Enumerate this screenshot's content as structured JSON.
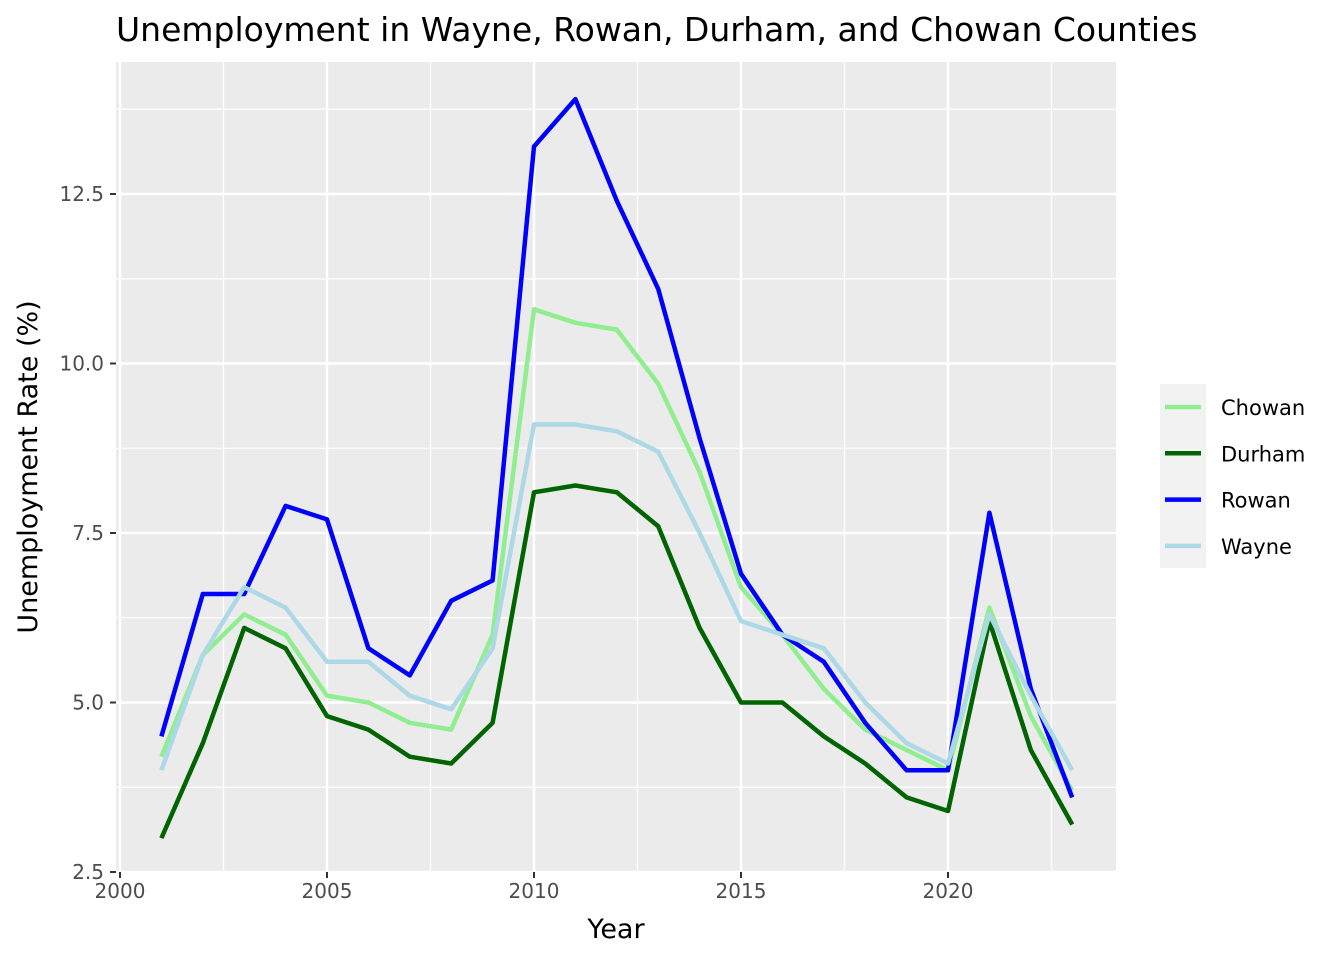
{
  "chart_data": {
    "type": "line",
    "title": "Unemployment in Wayne, Rowan, Durham, and Chowan Counties",
    "xlabel": "Year",
    "ylabel": "Unemployment Rate (%)",
    "xlim": [
      2000,
      2023
    ],
    "ylim": [
      2.5,
      14
    ],
    "x_ticks": [
      2000,
      2005,
      2010,
      2015,
      2020
    ],
    "x_tick_labels": [
      "2000",
      "2005",
      "2010",
      "2015",
      "2020"
    ],
    "y_ticks": [
      2.5,
      5.0,
      7.5,
      10.0,
      12.5
    ],
    "y_tick_labels": [
      "2.5",
      "5.0",
      "7.5",
      "10.0",
      "12.5"
    ],
    "grid": true,
    "legend_position": "right",
    "x": [
      2001,
      2002,
      2003,
      2004,
      2005,
      2006,
      2007,
      2008,
      2009,
      2010,
      2011,
      2012,
      2013,
      2014,
      2015,
      2016,
      2017,
      2018,
      2019,
      2020,
      2021,
      2022,
      2023
    ],
    "series": [
      {
        "name": "Chowan",
        "color": "#90ee90",
        "values": [
          4.2,
          5.7,
          6.3,
          6.0,
          5.1,
          5.0,
          4.7,
          4.6,
          6.0,
          10.8,
          10.6,
          10.5,
          9.7,
          8.4,
          6.7,
          6.0,
          5.2,
          4.6,
          4.3,
          4.0,
          6.4,
          4.8,
          3.7
        ]
      },
      {
        "name": "Durham",
        "color": "#006400",
        "values": [
          3.0,
          4.4,
          6.1,
          5.8,
          4.8,
          4.6,
          4.2,
          4.1,
          4.7,
          8.1,
          8.2,
          8.1,
          7.6,
          6.1,
          5.0,
          5.0,
          4.5,
          4.1,
          3.6,
          3.4,
          6.2,
          4.3,
          3.2
        ]
      },
      {
        "name": "Rowan",
        "color": "#0000ff",
        "values": [
          4.5,
          6.6,
          6.6,
          7.9,
          7.7,
          5.8,
          5.4,
          6.5,
          6.8,
          13.2,
          13.9,
          12.4,
          11.1,
          8.9,
          6.9,
          6.0,
          5.6,
          4.7,
          4.0,
          4.0,
          7.8,
          5.2,
          3.6
        ]
      },
      {
        "name": "Wayne",
        "color": "#add8e6",
        "values": [
          4.0,
          5.7,
          6.7,
          6.4,
          5.6,
          5.6,
          5.1,
          4.9,
          5.8,
          9.1,
          9.1,
          9.0,
          8.7,
          7.5,
          6.2,
          6.0,
          5.8,
          5.0,
          4.4,
          4.1,
          6.3,
          5.1,
          4.0
        ]
      }
    ]
  }
}
